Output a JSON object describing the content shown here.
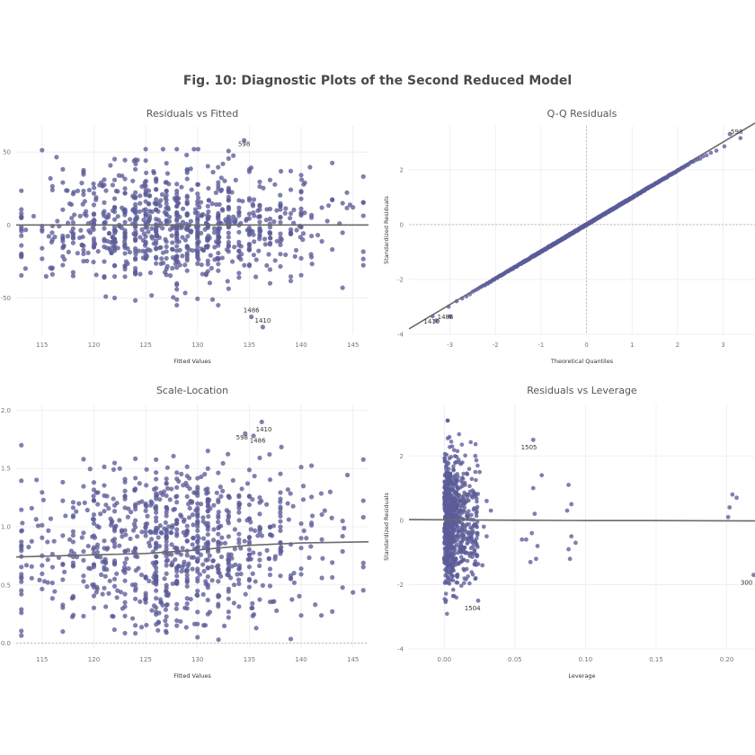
{
  "title": "Fig. 10: Diagnostic Plots of the Second Reduced Model",
  "colors": {
    "points": "#5b5c99",
    "line": "#6b6b6b",
    "title": "#4a4a4a"
  },
  "chart_data": [
    {
      "id": "rvf",
      "type": "scatter",
      "title": "Residuals vs Fitted",
      "xlabel": "Fitted Values",
      "ylabel": "",
      "xlim": [
        112.5,
        146.5
      ],
      "ylim": [
        -75,
        68
      ],
      "xticks": [
        115,
        120,
        125,
        130,
        135,
        140,
        145
      ],
      "yticks": [
        -50,
        0,
        50
      ],
      "grid": true,
      "point_count": 900,
      "fitted_range": [
        113,
        146
      ],
      "residual_spread": 20,
      "smooth_line": {
        "x": [
          112.5,
          146.5
        ],
        "y": [
          0,
          0
        ]
      },
      "reference_lines": [],
      "annotations": [
        {
          "label": "598",
          "x": 134.5,
          "y": 54
        },
        {
          "label": "1486",
          "x": 135.2,
          "y": -60
        },
        {
          "label": "1410",
          "x": 136.3,
          "y": -67
        }
      ]
    },
    {
      "id": "qq",
      "type": "scatter",
      "title": "Q-Q Residuals",
      "xlabel": "Theoretical Quantiles",
      "ylabel": "Standardized Residuals",
      "xlim": [
        -3.9,
        3.7
      ],
      "ylim": [
        -4,
        3.6
      ],
      "xticks": [
        -3,
        -2,
        -1,
        0,
        1,
        2,
        3
      ],
      "yticks": [
        -4,
        -2,
        0,
        2
      ],
      "grid": true,
      "point_count": 700,
      "line": {
        "x": [
          -3.9,
          3.7
        ],
        "y": [
          -3.8,
          3.7
        ]
      },
      "reference_lines": [
        {
          "axis": "x",
          "value": 0
        },
        {
          "axis": "y",
          "value": 0
        }
      ],
      "annotations": [
        {
          "label": "598",
          "x": 3.3,
          "y": 3.3
        },
        {
          "label": "1486",
          "x": -3.1,
          "y": -3.45
        },
        {
          "label": "1410",
          "x": -3.4,
          "y": -3.6
        }
      ]
    },
    {
      "id": "sl",
      "type": "scatter",
      "title": "Scale-Location",
      "xlabel": "Fitted Values",
      "ylabel": "",
      "xlim": [
        112.5,
        146.5
      ],
      "ylim": [
        -0.05,
        2.05
      ],
      "xticks": [
        115,
        120,
        125,
        130,
        135,
        140,
        145
      ],
      "yticks": [
        0.0,
        0.5,
        1.0,
        1.5,
        2.0
      ],
      "grid": true,
      "point_count": 900,
      "fitted_range": [
        113,
        146
      ],
      "smooth_line": {
        "x": [
          112.5,
          125,
          130,
          135,
          140,
          146.5
        ],
        "y": [
          0.74,
          0.77,
          0.8,
          0.84,
          0.86,
          0.87
        ]
      },
      "reference_lines": [
        {
          "axis": "y",
          "value": 0
        }
      ],
      "annotations": [
        {
          "label": "1410",
          "x": 136.4,
          "y": 1.82
        },
        {
          "label": "598",
          "x": 134.3,
          "y": 1.75
        },
        {
          "label": "1486",
          "x": 135.8,
          "y": 1.72
        }
      ]
    },
    {
      "id": "rvl",
      "type": "scatter",
      "title": "Residuals vs Leverage",
      "xlabel": "Leverage",
      "ylabel": "Standardized Residuals",
      "xlim": [
        -0.025,
        0.22
      ],
      "ylim": [
        -4,
        3.6
      ],
      "xticks": [
        0.0,
        0.05,
        0.1,
        0.15,
        0.2
      ],
      "tick_labels": [
        "0.00",
        "0.05",
        "0.10",
        "0.15",
        "0.20"
      ],
      "yticks": [
        -4,
        -2,
        0,
        2
      ],
      "grid": true,
      "point_count": 850,
      "smooth_line": {
        "x": [
          -0.025,
          0.05,
          0.1,
          0.15,
          0.22
        ],
        "y": [
          0.02,
          0.0,
          -0.01,
          -0.01,
          -0.02
        ]
      },
      "reference_lines": [],
      "outlier_points": [
        {
          "x": 0.063,
          "y": 2.5
        },
        {
          "x": 0.069,
          "y": 1.4
        },
        {
          "x": 0.063,
          "y": 1.0
        },
        {
          "x": 0.064,
          "y": 0.2
        },
        {
          "x": 0.062,
          "y": -0.4
        },
        {
          "x": 0.058,
          "y": -0.6
        },
        {
          "x": 0.065,
          "y": -1.2
        },
        {
          "x": 0.061,
          "y": -1.3
        },
        {
          "x": 0.066,
          "y": -0.8
        },
        {
          "x": 0.088,
          "y": 1.1
        },
        {
          "x": 0.09,
          "y": 0.5
        },
        {
          "x": 0.087,
          "y": 0.3
        },
        {
          "x": 0.09,
          "y": -0.5
        },
        {
          "x": 0.093,
          "y": -0.7
        },
        {
          "x": 0.088,
          "y": -0.9
        },
        {
          "x": 0.089,
          "y": -1.2
        },
        {
          "x": 0.055,
          "y": -0.6
        },
        {
          "x": 0.204,
          "y": 0.8
        },
        {
          "x": 0.207,
          "y": 0.7
        },
        {
          "x": 0.202,
          "y": 0.4
        },
        {
          "x": 0.201,
          "y": 0.1
        },
        {
          "x": 0.219,
          "y": -1.7
        },
        {
          "x": 0.03,
          "y": 0.6
        },
        {
          "x": 0.033,
          "y": 0.3
        },
        {
          "x": 0.028,
          "y": -0.2
        },
        {
          "x": 0.03,
          "y": -0.5
        },
        {
          "x": 0.025,
          "y": 1.5
        },
        {
          "x": 0.027,
          "y": -1.4
        },
        {
          "x": 0.022,
          "y": 2.0
        },
        {
          "x": 0.024,
          "y": -2.5
        }
      ],
      "annotations": [
        {
          "label": "1505",
          "x": 0.06,
          "y": 2.2
        },
        {
          "label": "1504",
          "x": 0.02,
          "y": -2.8
        },
        {
          "label": "300",
          "x": 0.214,
          "y": -2.0
        }
      ]
    }
  ]
}
